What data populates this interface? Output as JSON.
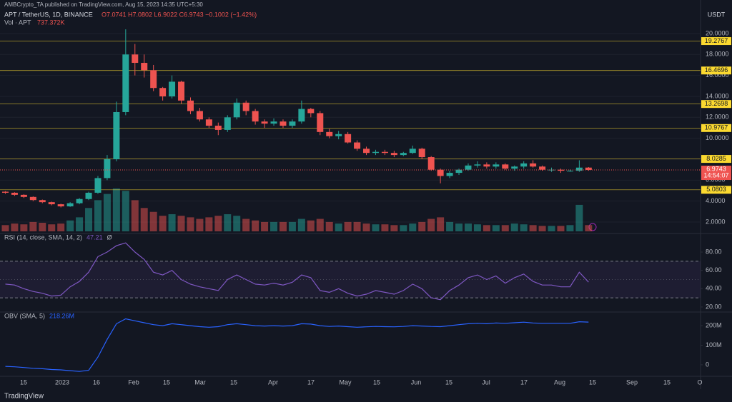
{
  "header": {
    "publisher": "AMBCrypto_TA published on TradingView.com, Aug 15, 2023 14:35 UTC+5:30",
    "symbol": "APT / TetherUS, 1D, BINANCE",
    "ohlc": "O7.0741 H7.0802 L6.9022 C6.9743 −0.1002 (−1.42%)",
    "volume_label": "Vol · APT",
    "volume_value": "737.372K",
    "currency": "USDT",
    "logo": "TradingView"
  },
  "time_labels": [
    "15",
    "2023",
    "16",
    "Feb",
    "15",
    "Mar",
    "15",
    "Apr",
    "17",
    "May",
    "15",
    "Jun",
    "15",
    "Jul",
    "17",
    "Aug",
    "15",
    "Sep",
    "15",
    "O"
  ],
  "chart_data": [
    {
      "type": "candlestick",
      "up_color": "#26a69a",
      "down_color": "#ef5350",
      "grid": true,
      "ylim": [
        0.91,
        23.2
      ],
      "yticks": [
        {
          "value": 2,
          "label": "2.0000"
        },
        {
          "value": 4,
          "label": "4.0000"
        },
        {
          "value": 6,
          "label": "6.0000"
        },
        {
          "value": 8,
          "label": "8.0000"
        },
        {
          "value": 10,
          "label": "10.0000"
        },
        {
          "value": 12,
          "label": "12.0000"
        },
        {
          "value": 14,
          "label": "14.0000"
        },
        {
          "value": 16,
          "label": "16.0000"
        },
        {
          "value": 18,
          "label": "18.0000"
        },
        {
          "value": 20,
          "label": "20.0000"
        }
      ],
      "levels": [
        19.2767,
        16.4696,
        13.2698,
        10.9767,
        8.0285,
        5.0803
      ],
      "level_color": "#fbd930",
      "last_price": 6.9743,
      "countdown": "14:54:07",
      "open": [
        4.9,
        4.8,
        4.6,
        4.4,
        4.1,
        3.9,
        3.7,
        3.5,
        3.8,
        4.2,
        4.8,
        6.2,
        8.0,
        12.5,
        18.0,
        17.2,
        16.5,
        14.8,
        14.0,
        15.4,
        13.6,
        12.6,
        11.8,
        11.2,
        10.8,
        12.0,
        13.4,
        12.6,
        11.6,
        11.4,
        11.6,
        11.2,
        11.6,
        12.8,
        12.4,
        10.6,
        10.2,
        10.4,
        9.6,
        9.0,
        8.6,
        8.7,
        8.6,
        8.4,
        8.6,
        9.0,
        8.2,
        7.0,
        6.4,
        6.7,
        7.0,
        7.4,
        7.5,
        7.3,
        7.5,
        7.1,
        7.3,
        7.6,
        7.3,
        7.0,
        7.0,
        6.9,
        6.9,
        7.2
      ],
      "high": [
        4.95,
        4.85,
        4.65,
        4.45,
        4.15,
        3.95,
        3.75,
        3.9,
        4.3,
        4.9,
        6.4,
        8.4,
        13.5,
        20.4,
        19.0,
        18.0,
        17.0,
        14.9,
        16.0,
        15.5,
        13.9,
        12.9,
        12.0,
        11.5,
        12.2,
        13.8,
        13.6,
        12.8,
        11.8,
        11.9,
        11.8,
        11.8,
        13.6,
        12.9,
        12.6,
        10.9,
        10.7,
        10.6,
        9.8,
        9.2,
        8.9,
        8.9,
        8.8,
        8.7,
        9.3,
        9.1,
        8.3,
        7.1,
        6.9,
        7.1,
        7.6,
        7.8,
        7.7,
        7.7,
        7.6,
        7.4,
        7.8,
        7.9,
        7.4,
        7.2,
        7.1,
        7.0,
        7.9,
        7.25
      ],
      "low": [
        4.7,
        4.5,
        4.3,
        4.0,
        3.8,
        3.6,
        3.4,
        3.45,
        3.7,
        4.1,
        4.7,
        6.0,
        7.8,
        12.2,
        16.0,
        15.8,
        14.5,
        13.6,
        13.8,
        13.3,
        12.3,
        11.6,
        11.0,
        10.3,
        10.6,
        11.8,
        12.2,
        11.3,
        11.0,
        11.2,
        11.0,
        11.0,
        11.4,
        12.0,
        10.3,
        10.0,
        9.9,
        9.5,
        8.8,
        8.4,
        8.4,
        8.4,
        8.2,
        8.3,
        8.5,
        8.0,
        6.9,
        5.7,
        6.2,
        6.5,
        6.9,
        7.2,
        7.1,
        7.1,
        7.0,
        6.9,
        7.1,
        7.2,
        6.9,
        6.8,
        6.7,
        6.8,
        6.8,
        6.9022
      ],
      "close": [
        4.8,
        4.6,
        4.4,
        4.1,
        3.9,
        3.7,
        3.5,
        3.8,
        4.2,
        4.8,
        6.2,
        8.0,
        12.5,
        18.0,
        17.2,
        16.5,
        14.8,
        14.0,
        15.4,
        13.6,
        12.6,
        11.8,
        11.2,
        10.8,
        12.0,
        13.4,
        12.6,
        11.6,
        11.4,
        11.6,
        11.2,
        11.6,
        12.8,
        12.4,
        10.6,
        10.2,
        10.4,
        9.6,
        9.0,
        8.6,
        8.7,
        8.6,
        8.4,
        8.6,
        9.0,
        8.2,
        7.0,
        6.4,
        6.7,
        7.0,
        7.4,
        7.5,
        7.3,
        7.5,
        7.1,
        7.3,
        7.6,
        7.3,
        7.0,
        7.0,
        6.9,
        6.9,
        7.2,
        6.9743
      ],
      "volume": [
        8,
        10,
        9,
        12,
        11,
        9,
        10,
        14,
        18,
        30,
        40,
        48,
        55,
        52,
        40,
        30,
        25,
        20,
        22,
        20,
        18,
        16,
        18,
        20,
        22,
        20,
        16,
        14,
        12,
        12,
        12,
        12,
        16,
        14,
        16,
        12,
        10,
        12,
        12,
        10,
        9,
        9,
        8,
        8,
        10,
        12,
        16,
        18,
        12,
        10,
        10,
        9,
        8,
        8,
        8,
        10,
        9,
        8,
        7,
        7,
        7,
        8,
        34,
        8
      ]
    },
    {
      "type": "line",
      "title": "RSI (14, close, SMA, 14, 2)",
      "last_label": "47.21",
      "extra": "Ø",
      "color": "#7e57c2",
      "ylim": [
        14.5,
        100.3
      ],
      "bands": [
        70,
        30
      ],
      "midline": 50,
      "yticks": [
        {
          "value": 20,
          "label": "20.00"
        },
        {
          "value": 40,
          "label": "40.00"
        },
        {
          "value": 60,
          "label": "60.00"
        },
        {
          "value": 80,
          "label": "80.00"
        }
      ],
      "values": [
        45,
        44,
        40,
        37,
        35,
        32,
        33,
        42,
        48,
        58,
        75,
        80,
        87,
        90,
        80,
        72,
        58,
        55,
        60,
        50,
        45,
        42,
        40,
        38,
        50,
        55,
        50,
        45,
        44,
        46,
        44,
        47,
        55,
        52,
        38,
        36,
        40,
        35,
        32,
        34,
        38,
        36,
        34,
        38,
        45,
        40,
        30,
        28,
        38,
        44,
        52,
        55,
        50,
        54,
        46,
        52,
        56,
        48,
        44,
        44,
        42,
        42,
        58,
        47.21
      ]
    },
    {
      "type": "line",
      "title": "OBV (SMA, 5)",
      "last_label": "218.26M",
      "color": "#2962ff",
      "ylim": [
        -58.7,
        269.7
      ],
      "yticks": [
        0,
        {
          "value": 100,
          "label": "100M"
        },
        {
          "value": 200,
          "label": "200M"
        }
      ],
      "values": [
        -8,
        -10,
        -14,
        -18,
        -20,
        -24,
        -26,
        -30,
        -34,
        -28,
        40,
        130,
        210,
        235,
        225,
        215,
        205,
        200,
        210,
        205,
        200,
        195,
        192,
        195,
        205,
        210,
        205,
        200,
        198,
        200,
        198,
        200,
        210,
        208,
        200,
        196,
        198,
        195,
        192,
        194,
        196,
        195,
        194,
        196,
        200,
        198,
        196,
        195,
        200,
        205,
        210,
        212,
        210,
        214,
        212,
        215,
        218,
        214,
        212,
        212,
        212,
        212,
        220,
        218.26
      ]
    }
  ]
}
